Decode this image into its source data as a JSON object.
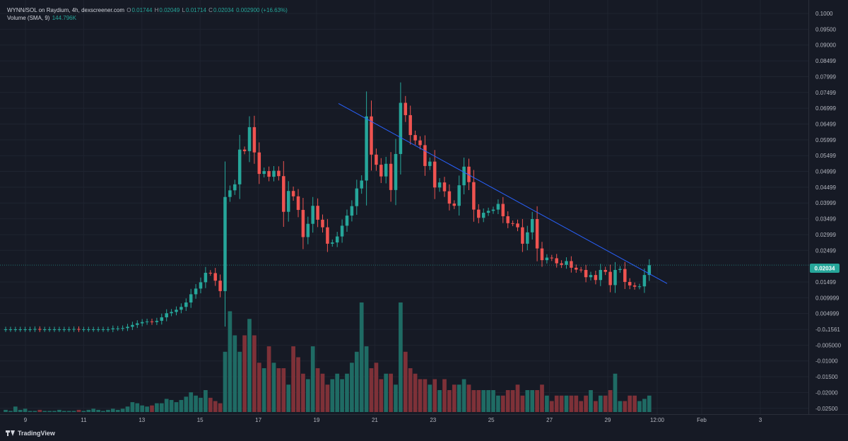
{
  "legend": {
    "pair": "WYNN/SOL on Raydium, 4h, dexscreener.com",
    "o_label": "O",
    "o": "0.01744",
    "h_label": "H",
    "h": "0.02049",
    "l_label": "L",
    "l": "0.01714",
    "c_label": "C",
    "c": "0.02034",
    "change": "0.002900 (+16.63%)",
    "volume_label": "Volume (SMA, 9)",
    "volume_value": "144.796K"
  },
  "brand": "TradingView",
  "colors": {
    "up": "#26a69a",
    "down": "#ef5350",
    "up_vol": "#1f6b64",
    "down_vol": "#7e3138",
    "trendline": "#2962ff",
    "background": "#161a25"
  },
  "chart_data": {
    "type": "candlestick",
    "x_tick_labels": [
      "9",
      "11",
      "13",
      "15",
      "17",
      "19",
      "21",
      "23",
      "25",
      "27",
      "29",
      "12:00",
      "Feb",
      "3"
    ],
    "y_tick_labels": [
      "0.1000",
      "0.09500",
      "0.09000",
      "0.08499",
      "0.07999",
      "0.07499",
      "0.06999",
      "0.06499",
      "0.05999",
      "0.05499",
      "0.04999",
      "0.04499",
      "0.03999",
      "0.03499",
      "0.02999",
      "0.02499",
      "0.01499",
      "0.009999",
      "0.004999",
      "-0.0₄1561",
      "-0.005000",
      "-0.01000",
      "-0.01500",
      "-0.02000",
      "-0.02500"
    ],
    "y_tick_values": [
      0.1,
      0.095,
      0.09,
      0.08499,
      0.07999,
      0.07499,
      0.06999,
      0.06499,
      0.05999,
      0.05499,
      0.04999,
      0.04499,
      0.03999,
      0.03499,
      0.02999,
      0.02499,
      0.01499,
      0.009999,
      0.004999,
      -1.561e-05,
      -0.005,
      -0.01,
      -0.015,
      -0.02,
      -0.025
    ],
    "last_price": "0.02034",
    "last_price_value": 0.02034,
    "trendline": {
      "from": {
        "date": "Jan 19",
        "price": 0.0715
      },
      "to": {
        "date": "Jan 31",
        "price": 0.0145
      }
    },
    "series": [
      {
        "name": "WYNN/SOL",
        "closes": [
          0.0,
          0.0,
          0.0,
          0.0,
          0.0,
          0.0,
          0.0001,
          0.0,
          0.0,
          0.0,
          0.0,
          0.0,
          0.0,
          0.0,
          0.0001,
          0.0,
          0.0,
          0.0,
          0.0,
          0.0,
          0.0,
          0.0,
          0.0003,
          0.0003,
          0.0004,
          0.0008,
          0.0014,
          0.0019,
          0.0023,
          0.0025,
          0.0023,
          0.0027,
          0.0038,
          0.0051,
          0.0055,
          0.0062,
          0.0071,
          0.0085,
          0.0111,
          0.0129,
          0.0149,
          0.0179,
          0.0178,
          0.0154,
          0.0121,
          0.0419,
          0.044,
          0.0459,
          0.0569,
          0.0564,
          0.064,
          0.056,
          0.0492,
          0.0501,
          0.0483,
          0.0502,
          0.0485,
          0.0372,
          0.0438,
          0.0421,
          0.0378,
          0.0292,
          0.0334,
          0.0391,
          0.0347,
          0.0323,
          0.0271,
          0.0275,
          0.0294,
          0.0328,
          0.036,
          0.039,
          0.0446,
          0.0471,
          0.0674,
          0.0553,
          0.0521,
          0.0484,
          0.0524,
          0.0441,
          0.0555,
          0.0717,
          0.0678,
          0.0615,
          0.0598,
          0.0583,
          0.0517,
          0.0531,
          0.0449,
          0.0465,
          0.0437,
          0.0398,
          0.0391,
          0.0456,
          0.0515,
          0.0466,
          0.0379,
          0.0353,
          0.0369,
          0.0375,
          0.0379,
          0.0397,
          0.0358,
          0.0336,
          0.0335,
          0.0323,
          0.0271,
          0.0307,
          0.0349,
          0.0256,
          0.0219,
          0.0227,
          0.0225,
          0.0209,
          0.0204,
          0.0216,
          0.0195,
          0.0189,
          0.0188,
          0.0165,
          0.0172,
          0.0156,
          0.0188,
          0.0182,
          0.014,
          0.0188,
          0.0191,
          0.015,
          0.0139,
          0.0135,
          0.0136,
          0.0172,
          0.0203
        ]
      }
    ]
  }
}
